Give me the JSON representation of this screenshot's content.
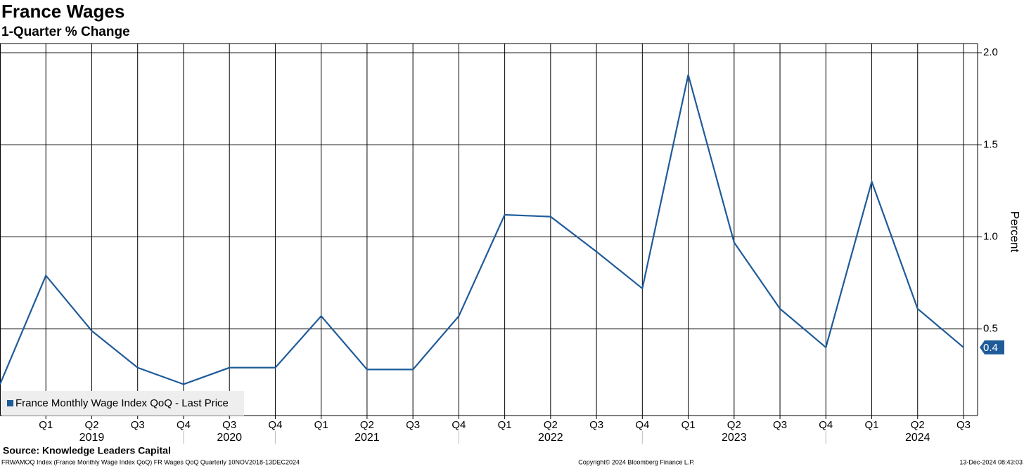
{
  "chart_data": {
    "type": "line",
    "title": "France Wages",
    "subtitle": "1-Quarter % Change",
    "y_axis_label": "Percent",
    "categories": [
      null,
      "Q1",
      "Q2",
      "Q3",
      "Q4",
      "Q3",
      "Q4",
      "Q1",
      "Q2",
      "Q3",
      "Q4",
      "Q1",
      "Q2",
      "Q3",
      "Q4",
      "Q1",
      "Q2",
      "Q3",
      "Q4",
      "Q1",
      "Q2",
      "Q3"
    ],
    "years": [
      null,
      null,
      "2019",
      null,
      null,
      "2020",
      null,
      null,
      "2021",
      null,
      null,
      null,
      "2022",
      null,
      null,
      null,
      "2023",
      null,
      null,
      null,
      "2024",
      null
    ],
    "series": [
      {
        "name": "France Monthly Wage Index QoQ - Last Price",
        "color": "#1f5b99",
        "values": [
          0.2,
          0.79,
          0.49,
          0.29,
          0.2,
          0.29,
          0.29,
          0.57,
          0.28,
          0.28,
          0.57,
          1.12,
          1.11,
          0.92,
          0.72,
          1.88,
          0.97,
          0.61,
          0.4,
          1.3,
          0.61,
          0.4
        ],
        "value_labels": [
          null,
          null,
          null,
          null,
          null,
          null,
          null,
          null,
          null,
          null,
          null,
          null,
          null,
          null,
          null,
          null,
          null,
          null,
          null,
          null,
          null,
          "0.4"
        ]
      }
    ],
    "ylim": [
      0.03,
      2.05
    ],
    "yticks": [
      0.5,
      {
        "value": 1,
        "label": "1.0"
      },
      1.5,
      {
        "value": 2,
        "label": "2.0"
      }
    ],
    "grid": true,
    "legend": "bottom-left",
    "source": "Source: Knowledge Leaders Capital",
    "footer_left": "FRWAMOQ Index (France Monthly Wage Index QoQ) FR Wages QoQ  Quarterly 10NOV2018-13DEC2024",
    "footer_center": "Copyright© 2024 Bloomberg Finance L.P.",
    "footer_right": "13-Dec-2024 08:43:03"
  }
}
